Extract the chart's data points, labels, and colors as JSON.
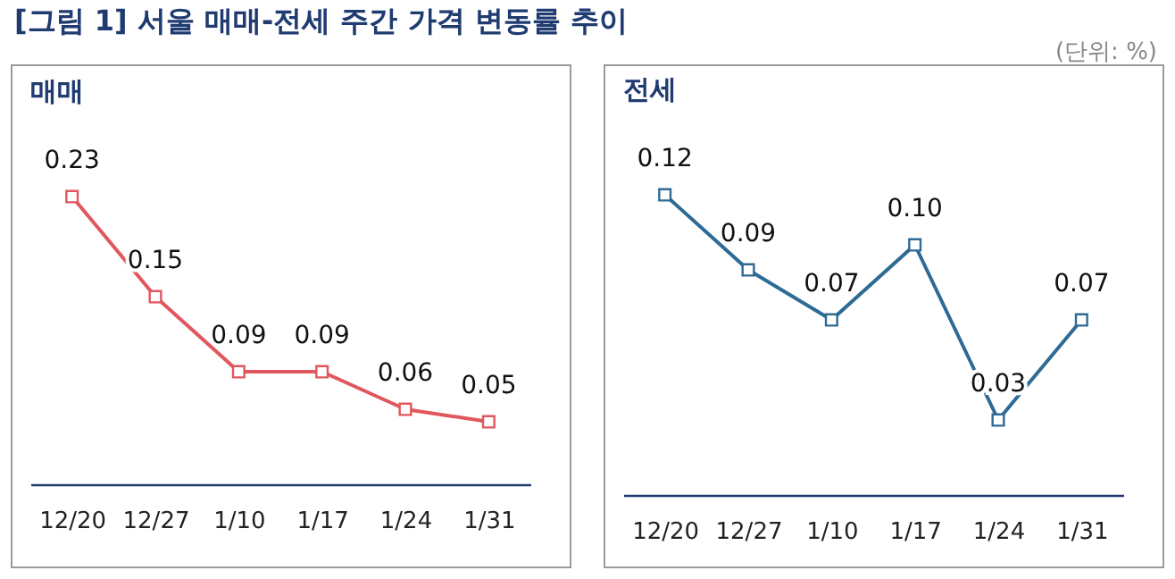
{
  "chart_data": [
    {
      "type": "line",
      "title": "매매",
      "annotations": [
        "[그림 1] 서울 매매-전세 주간 가격 변동률 추이",
        "(단위: %)"
      ],
      "categories": [
        "12/20",
        "12/27",
        "1/10",
        "1/17",
        "1/24",
        "1/31"
      ],
      "series": [
        {
          "color": "#e0575d",
          "values": [
            0.23,
            0.15,
            0.09,
            0.09,
            0.06,
            0.05
          ],
          "value_labels": [
            "0.23",
            "0.15",
            "0.09",
            "0.09",
            "0.06",
            "0.05"
          ]
        }
      ],
      "marker": "square"
    },
    {
      "type": "line",
      "title": "전세",
      "categories": [
        "12/20",
        "12/27",
        "1/10",
        "1/17",
        "1/24",
        "1/31"
      ],
      "series": [
        {
          "color": "#2e6a94",
          "values": [
            0.12,
            0.09,
            0.07,
            0.1,
            0.03,
            0.07
          ],
          "value_labels": [
            "0.12",
            "0.09",
            "0.07",
            "0.10",
            "0.03",
            "0.07"
          ]
        }
      ],
      "marker": "square"
    }
  ]
}
